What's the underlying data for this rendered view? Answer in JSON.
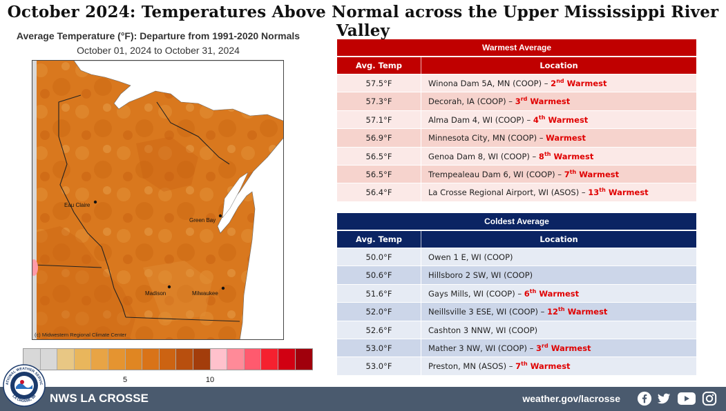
{
  "page_title": "October 2024:  Temperatures Above Normal across the Upper Mississippi River Valley",
  "map": {
    "title": "Average Temperature (°F): Departure from 1991-2020 Normals",
    "subtitle": "October 01, 2024 to October 31, 2024",
    "credit": "(c) Midwestern Regional Climate Center",
    "cities": {
      "eau_claire": "Eau Claire",
      "green_bay": "Green Bay",
      "madison": "Madison",
      "milwaukee": "Milwaukee"
    },
    "colors": {
      "land": "#d9781e",
      "land_dark": "#c8620f",
      "land_light": "#e59a45",
      "water": "#ffffff"
    }
  },
  "legend": {
    "colors": [
      "#d8d8d8",
      "#d8d8d8",
      "#e8c784",
      "#e9b65c",
      "#e8a445",
      "#e59430",
      "#e08622",
      "#d97318",
      "#cc6312",
      "#b84f0e",
      "#a33d0b",
      "#ffc1cc",
      "#ff8a98",
      "#ff5a6e",
      "#f5212f",
      "#d10012",
      "#a0000c"
    ],
    "tick_5": "5",
    "tick_10": "10"
  },
  "warmest": {
    "title": "Warmest  Average",
    "col_temp": "Avg. Temp",
    "col_loc": "Location",
    "rows": [
      {
        "temp": "57.5°F",
        "loc": "Winona Dam 5A, MN (COOP) – ",
        "rank": "2",
        "sup": "nd",
        "word": "Warmest"
      },
      {
        "temp": "57.3°F",
        "loc": "Decorah, IA (COOP) – ",
        "rank": "3",
        "sup": "rd",
        "word": "Warmest"
      },
      {
        "temp": "57.1°F",
        "loc": "Alma Dam 4, WI (COOP) – ",
        "rank": "4",
        "sup": "th",
        "word": "Warmest"
      },
      {
        "temp": "56.9°F",
        "loc": "Minnesota City, MN (COOP) – ",
        "rank": "",
        "sup": "",
        "word": "Warmest"
      },
      {
        "temp": "56.5°F",
        "loc": "Genoa Dam 8, WI (COOP) – ",
        "rank": "8",
        "sup": "th",
        "word": "Warmest"
      },
      {
        "temp": "56.5°F",
        "loc": "Trempealeau Dam 6, WI (COOP) – ",
        "rank": "7",
        "sup": "th",
        "word": "Warmest"
      },
      {
        "temp": "56.4°F",
        "loc": "La Crosse Regional Airport, WI (ASOS) – ",
        "rank": "13",
        "sup": "th",
        "word": "Warmest"
      }
    ]
  },
  "coldest": {
    "title": "Coldest Average",
    "col_temp": "Avg. Temp",
    "col_loc": "Location",
    "rows": [
      {
        "temp": "50.0°F",
        "loc": "Owen 1 E, WI (COOP)",
        "rank": "",
        "sup": "",
        "word": ""
      },
      {
        "temp": "50.6°F",
        "loc": "Hillsboro 2 SW, WI (COOP)",
        "rank": "",
        "sup": "",
        "word": ""
      },
      {
        "temp": "51.6°F",
        "loc": "Gays Mills, WI (COOP) – ",
        "rank": "6",
        "sup": "th",
        "word": "Warmest"
      },
      {
        "temp": "52.0°F",
        "loc": "Neillsville 3 ESE, WI (COOP) – ",
        "rank": "12",
        "sup": "th",
        "word": "Warmest"
      },
      {
        "temp": "52.6°F",
        "loc": "Cashton 3 NNW, WI (COOP)",
        "rank": "",
        "sup": "",
        "word": ""
      },
      {
        "temp": "53.0°F",
        "loc": "Mather 3 NW, WI (COOP) – ",
        "rank": "3",
        "sup": "rd",
        "word": "Warmest"
      },
      {
        "temp": "53.0°F",
        "loc": "Preston, MN (ASOS) – ",
        "rank": "7",
        "sup": "th",
        "word": "Warmest"
      }
    ]
  },
  "footer": {
    "office": "NWS LA CROSSE",
    "url": "weather.gov/lacrosse",
    "logo_text_top": "NATIONAL WEATHER SERVICE",
    "logo_text_bottom": "LA CROSSE, WI",
    "social": [
      "facebook-icon",
      "twitter-icon",
      "youtube-icon",
      "instagram-icon"
    ]
  }
}
